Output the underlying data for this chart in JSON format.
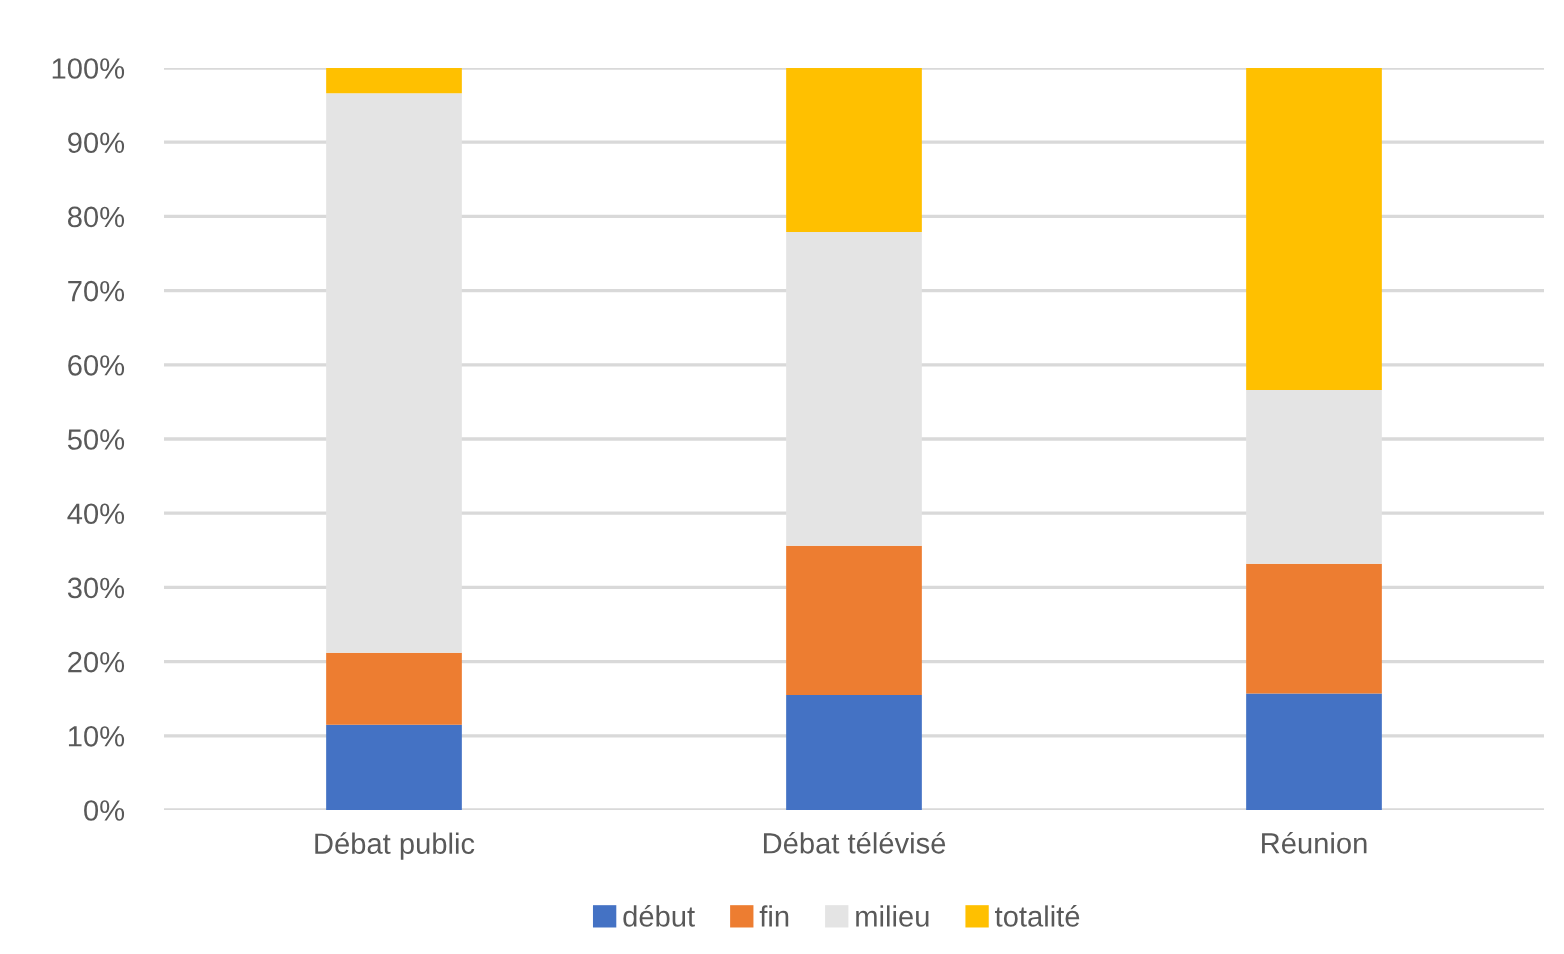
{
  "chart_data": {
    "type": "bar",
    "stacked": true,
    "categories": [
      "Débat public",
      "Débat télévisé",
      "Réunion"
    ],
    "series": [
      {
        "name": "début",
        "color": "#4472c4",
        "values": [
          11.5,
          15.5,
          15.7
        ]
      },
      {
        "name": "fin",
        "color": "#ed7d31",
        "values": [
          9.7,
          20.1,
          17.5
        ]
      },
      {
        "name": "milieu",
        "color": "#e4e4e4",
        "values": [
          75.4,
          42.3,
          23.4
        ]
      },
      {
        "name": "totalité",
        "color": "#ffc000",
        "values": [
          3.4,
          22.1,
          43.4
        ]
      }
    ],
    "ylim": [
      0,
      100
    ],
    "yticks": [
      {
        "value": 0,
        "label": "0%"
      },
      {
        "value": 10,
        "label": "10%"
      },
      {
        "value": 20,
        "label": "20%"
      },
      {
        "value": 30,
        "label": "30%"
      },
      {
        "value": 40,
        "label": "40%"
      },
      {
        "value": 50,
        "label": "50%"
      },
      {
        "value": 60,
        "label": "60%"
      },
      {
        "value": 70,
        "label": "70%"
      },
      {
        "value": 80,
        "label": "80%"
      },
      {
        "value": 90,
        "label": "90%"
      },
      {
        "value": 100,
        "label": "100%"
      }
    ],
    "grid": "y",
    "legend": "bottom"
  }
}
